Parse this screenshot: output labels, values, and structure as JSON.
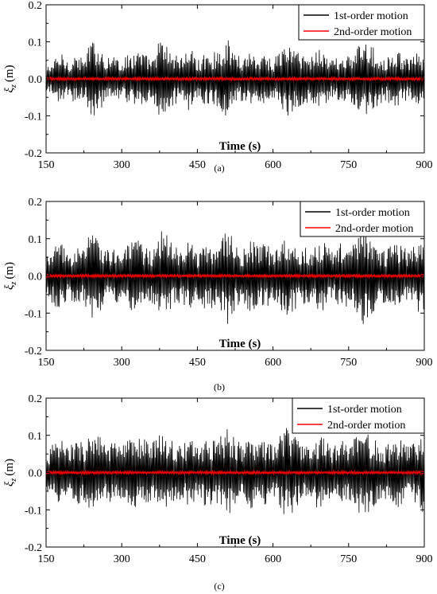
{
  "chart_data": [
    {
      "type": "line",
      "panel_label": "(a)",
      "xlabel": "Time (s)",
      "ylabel": "ξz (m)",
      "ylabel_main": "ξ",
      "ylabel_sub": "z",
      "ylabel_unit": "(m)",
      "xlim": [
        150,
        900
      ],
      "ylim": [
        -0.2,
        0.2
      ],
      "xticks": [
        150,
        300,
        450,
        600,
        750,
        900
      ],
      "yticks": [
        -0.2,
        -0.1,
        0.0,
        0.1,
        0.2
      ],
      "ytick_labels": [
        "-0.2",
        "-0.1",
        "0.0",
        "0.1",
        "0.2"
      ],
      "grid": false,
      "legend": "top-right",
      "series": [
        {
          "name": "1st-order motion",
          "color": "#000000",
          "x": [
            150,
            165,
            180,
            195,
            210,
            225,
            240,
            255,
            270,
            285,
            300,
            315,
            330,
            345,
            360,
            375,
            390,
            405,
            420,
            435,
            450,
            465,
            480,
            495,
            510,
            525,
            540,
            555,
            570,
            585,
            600,
            615,
            630,
            645,
            660,
            675,
            690,
            705,
            720,
            735,
            750,
            765,
            780,
            795,
            810,
            825,
            840,
            855,
            870,
            885,
            900
          ],
          "envelope": [
            0.03,
            0.05,
            0.07,
            0.05,
            0.07,
            0.05,
            0.11,
            0.09,
            0.06,
            0.07,
            0.05,
            0.07,
            0.08,
            0.07,
            0.05,
            0.11,
            0.09,
            0.07,
            0.06,
            0.09,
            0.05,
            0.07,
            0.07,
            0.08,
            0.11,
            0.07,
            0.06,
            0.08,
            0.06,
            0.07,
            0.05,
            0.08,
            0.1,
            0.08,
            0.07,
            0.06,
            0.09,
            0.07,
            0.05,
            0.07,
            0.06,
            0.08,
            0.11,
            0.09,
            0.07,
            0.06,
            0.08,
            0.07,
            0.05,
            0.07,
            0.06
          ]
        },
        {
          "name": "2nd-order motion",
          "color": "#ff0000",
          "x": [
            150,
            900
          ],
          "envelope": [
            0.004,
            0.004
          ]
        }
      ]
    },
    {
      "type": "line",
      "panel_label": "(b)",
      "xlabel": "Time (s)",
      "ylabel": "ξz (m)",
      "ylabel_main": "ξ",
      "ylabel_sub": "z",
      "ylabel_unit": "(m)",
      "xlim": [
        150,
        900
      ],
      "ylim": [
        -0.2,
        0.2
      ],
      "xticks": [
        150,
        300,
        450,
        600,
        750,
        900
      ],
      "yticks": [
        -0.2,
        -0.1,
        0.0,
        0.1,
        0.2
      ],
      "ytick_labels": [
        "-0.2",
        "-0.1",
        "0.0",
        "0.1",
        "0.2"
      ],
      "grid": false,
      "legend": "top-right",
      "series": [
        {
          "name": "1st-order motion",
          "color": "#000000",
          "x": [
            150,
            165,
            180,
            195,
            210,
            225,
            240,
            255,
            270,
            285,
            300,
            315,
            330,
            345,
            360,
            375,
            390,
            405,
            420,
            435,
            450,
            465,
            480,
            495,
            510,
            525,
            540,
            555,
            570,
            585,
            600,
            615,
            630,
            645,
            660,
            675,
            690,
            705,
            720,
            735,
            750,
            765,
            780,
            795,
            810,
            825,
            840,
            855,
            870,
            885,
            900
          ],
          "envelope": [
            0.05,
            0.08,
            0.09,
            0.06,
            0.08,
            0.07,
            0.14,
            0.1,
            0.07,
            0.09,
            0.06,
            0.09,
            0.1,
            0.08,
            0.07,
            0.13,
            0.11,
            0.08,
            0.07,
            0.1,
            0.06,
            0.09,
            0.09,
            0.1,
            0.13,
            0.09,
            0.07,
            0.1,
            0.08,
            0.09,
            0.07,
            0.1,
            0.11,
            0.09,
            0.08,
            0.07,
            0.1,
            0.09,
            0.06,
            0.09,
            0.08,
            0.1,
            0.14,
            0.11,
            0.08,
            0.07,
            0.1,
            0.08,
            0.07,
            0.09,
            0.12
          ]
        },
        {
          "name": "2nd-order motion",
          "color": "#ff0000",
          "x": [
            150,
            900
          ],
          "envelope": [
            0.004,
            0.004
          ]
        }
      ]
    },
    {
      "type": "line",
      "panel_label": "(c)",
      "xlabel": "Time (s)",
      "ylabel": "ξz (m)",
      "ylabel_main": "ξ",
      "ylabel_sub": "z",
      "ylabel_unit": "(m)",
      "xlim": [
        150,
        900
      ],
      "ylim": [
        -0.2,
        0.2
      ],
      "xticks": [
        150,
        300,
        450,
        600,
        750,
        900
      ],
      "yticks": [
        -0.2,
        -0.1,
        0.0,
        0.1,
        0.2
      ],
      "ytick_labels": [
        "-0.2",
        "-0.1",
        "0.0",
        "0.1",
        "0.2"
      ],
      "grid": false,
      "legend": "top-right",
      "series": [
        {
          "name": "1st-order motion",
          "color": "#000000",
          "x": [
            150,
            165,
            180,
            195,
            210,
            225,
            240,
            255,
            270,
            285,
            300,
            315,
            330,
            345,
            360,
            375,
            390,
            405,
            420,
            435,
            450,
            465,
            480,
            495,
            510,
            525,
            540,
            555,
            570,
            585,
            600,
            615,
            630,
            645,
            660,
            675,
            690,
            705,
            720,
            735,
            750,
            765,
            780,
            795,
            810,
            825,
            840,
            855,
            870,
            885,
            900
          ],
          "envelope": [
            0.05,
            0.08,
            0.09,
            0.07,
            0.09,
            0.08,
            0.12,
            0.1,
            0.07,
            0.09,
            0.07,
            0.09,
            0.1,
            0.09,
            0.08,
            0.12,
            0.1,
            0.08,
            0.07,
            0.1,
            0.07,
            0.09,
            0.09,
            0.1,
            0.12,
            0.09,
            0.08,
            0.1,
            0.08,
            0.09,
            0.07,
            0.1,
            0.13,
            0.1,
            0.08,
            0.07,
            0.1,
            0.09,
            0.07,
            0.09,
            0.08,
            0.1,
            0.12,
            0.1,
            0.08,
            0.07,
            0.1,
            0.09,
            0.07,
            0.09,
            0.12
          ]
        },
        {
          "name": "2nd-order motion",
          "color": "#ff0000",
          "x": [
            150,
            900
          ],
          "envelope": [
            0.004,
            0.004
          ]
        }
      ]
    }
  ]
}
